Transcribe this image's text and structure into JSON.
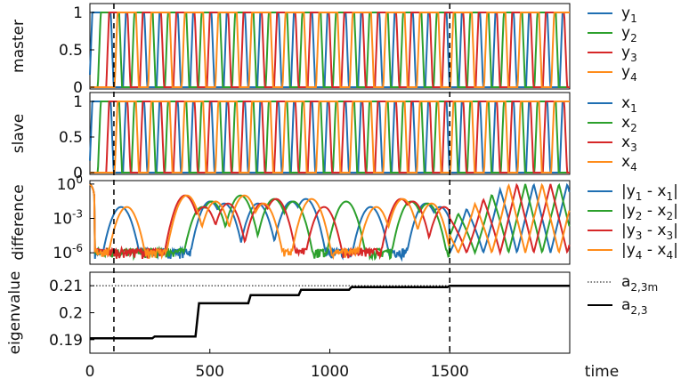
{
  "colors": {
    "c1": "#1f6fb2",
    "c2": "#2ca02c",
    "c3": "#d62728",
    "c4": "#ff8c1a",
    "black": "#000000"
  },
  "chart_data": [
    {
      "type": "line",
      "ylabel": "master",
      "ylim": [
        0,
        1
      ],
      "yticks": [
        "0",
        "0.5",
        "1"
      ],
      "x_range": [
        0,
        2000
      ],
      "oscillation": {
        "transition_times": [
          10,
          45,
          80,
          115,
          150,
          185,
          220,
          255,
          290,
          325,
          360,
          395,
          430,
          465,
          500,
          535,
          570,
          605,
          640,
          675,
          710,
          745,
          780,
          815,
          850,
          885,
          920,
          955,
          990,
          1025,
          1060,
          1095,
          1130,
          1165,
          1200,
          1235,
          1270,
          1305,
          1340,
          1375,
          1410,
          1445,
          1480,
          1515,
          1550,
          1585,
          1620,
          1655,
          1690,
          1725,
          1760,
          1795,
          1830,
          1865,
          1900,
          1935,
          1970
        ],
        "rise_fall": 12
      },
      "series": [
        {
          "name_main": "y",
          "name_sub": "1",
          "color": "c1",
          "phase": 0
        },
        {
          "name_main": "y",
          "name_sub": "2",
          "color": "c2",
          "phase": 1
        },
        {
          "name_main": "y",
          "name_sub": "3",
          "color": "c3",
          "phase": 2
        },
        {
          "name_main": "y",
          "name_sub": "4",
          "color": "c4",
          "phase": 3
        }
      ]
    },
    {
      "type": "line",
      "ylabel": "slave",
      "ylim": [
        0,
        1
      ],
      "yticks": [
        "0",
        "0.5",
        "1"
      ],
      "x_range": [
        0,
        2000
      ],
      "series": [
        {
          "name_main": "x",
          "name_sub": "1",
          "color": "c1",
          "phase": 0
        },
        {
          "name_main": "x",
          "name_sub": "2",
          "color": "c2",
          "phase": 1
        },
        {
          "name_main": "x",
          "name_sub": "3",
          "color": "c3",
          "phase": 2
        },
        {
          "name_main": "x",
          "name_sub": "4",
          "color": "c4",
          "phase": 3
        }
      ]
    },
    {
      "type": "line",
      "ylabel": "difference",
      "yscale": "log",
      "ylim": [
        1e-07,
        2
      ],
      "yticks": [
        {
          "base": "10",
          "exp": "0"
        },
        {
          "base": "10",
          "exp": "-3"
        },
        {
          "base": "10",
          "exp": "-6"
        }
      ],
      "x_range": [
        0,
        2000
      ],
      "desync_time": 1500,
      "series": [
        {
          "label_parts": [
            "|y",
            "1",
            " - x",
            "1",
            "|"
          ],
          "color": "c1"
        },
        {
          "label_parts": [
            "|y",
            "2",
            " - x",
            "2",
            "|"
          ],
          "color": "c2"
        },
        {
          "label_parts": [
            "|y",
            "3",
            " - x",
            "3",
            "|"
          ],
          "color": "c3"
        },
        {
          "label_parts": [
            "|y",
            "4",
            " - x",
            "4",
            "|"
          ],
          "color": "c4"
        }
      ]
    },
    {
      "type": "line",
      "ylabel": "eigenvalue",
      "ylim": [
        0.185,
        0.215
      ],
      "yticks": [
        "0.21",
        "0.2",
        "0.19"
      ],
      "x_range": [
        0,
        2000
      ],
      "xticks": [
        "0",
        "500",
        "1000",
        "1500"
      ],
      "xlabel": "time",
      "series": [
        {
          "name_main": "a",
          "name_sub": "2,3m",
          "color": "black",
          "style": "dotted",
          "constant": 0.21
        },
        {
          "name_main": "a",
          "name_sub": "2,3",
          "color": "black",
          "style": "solid",
          "steps": [
            [
              0,
              0.1905
            ],
            [
              260,
              0.1905
            ],
            [
              270,
              0.1912
            ],
            [
              440,
              0.1912
            ],
            [
              455,
              0.2035
            ],
            [
              660,
              0.2035
            ],
            [
              670,
              0.2065
            ],
            [
              870,
              0.2065
            ],
            [
              880,
              0.2085
            ],
            [
              1080,
              0.2085
            ],
            [
              1090,
              0.2095
            ],
            [
              1490,
              0.2095
            ],
            [
              1500,
              0.21
            ],
            [
              2000,
              0.21
            ]
          ]
        }
      ]
    }
  ],
  "markers": {
    "vlines": [
      100,
      1500
    ]
  }
}
